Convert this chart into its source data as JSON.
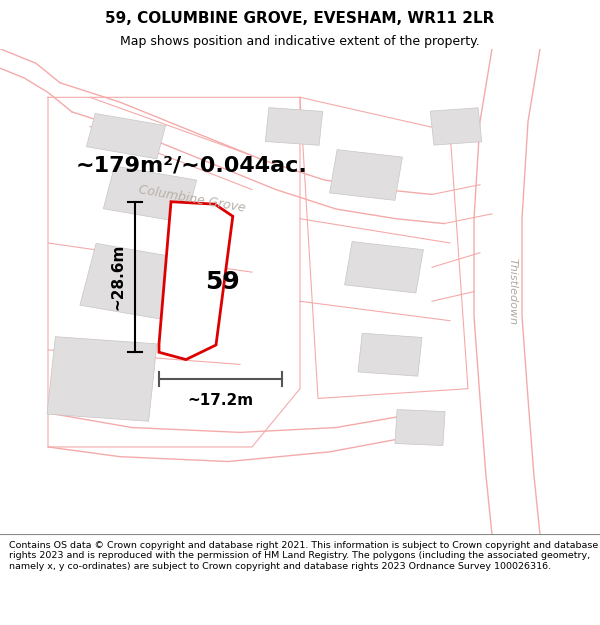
{
  "title": "59, COLUMBINE GROVE, EVESHAM, WR11 2LR",
  "subtitle": "Map shows position and indicative extent of the property.",
  "area_label": "~179m²/~0.044ac.",
  "plot_number": "59",
  "dim_width": "~17.2m",
  "dim_height": "~28.6m",
  "road_label_1": "Columbine Grove",
  "road_label_2": "Thistledown",
  "footer_text": "Contains OS data © Crown copyright and database right 2021. This information is subject to Crown copyright and database rights 2023 and is reproduced with the permission of HM Land Registry. The polygons (including the associated geometry, namely x, y co-ordinates) are subject to Crown copyright and database rights 2023 Ordnance Survey 100026316.",
  "bg_color": "#ffffff",
  "plot_color": "#ffffff",
  "plot_edge_color": "#dd0000",
  "road_line_color": "#f5aaaa",
  "plot_outline_color": "#c8c8c8",
  "building_color": "#e0dede",
  "building_edge_color": "#c8c4c4",
  "map_bg": "#f8f6f4",
  "figsize": [
    6.0,
    6.25
  ],
  "dpi": 100,
  "title_fontsize": 11,
  "subtitle_fontsize": 9,
  "area_fontsize": 16,
  "plot_num_fontsize": 18,
  "road_label_fontsize": 9,
  "footer_fontsize": 6.8
}
